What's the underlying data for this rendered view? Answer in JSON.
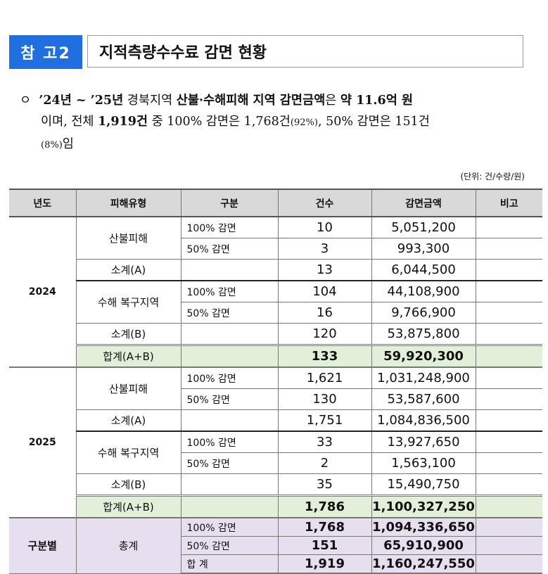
{
  "badge": "참 고2",
  "title": "지적측량수수료 감면 현황",
  "paragraph": {
    "bullet": "ㅇ",
    "line1_a": "’24년 ~ ’25년",
    "line1_b": " 경북지역 ",
    "line1_c": "산불·수해피해 지역 감면금액",
    "line1_d": "은 ",
    "line1_e": "약 11.6억 원",
    "line2_a": "이며, 전체 ",
    "line2_b": "1,919건",
    "line2_c": " 중 100% 감면은 1,768건",
    "line2_d": "(92%)",
    "line2_e": ", 50% 감면은 151건",
    "line3_a": "(8%)",
    "line3_b": "임"
  },
  "unit": "(단위: 건/수량/원)",
  "table": {
    "headers": [
      "년도",
      "피해유형",
      "구분",
      "건수",
      "감면금액",
      "비고"
    ],
    "years": [
      {
        "year": "2024",
        "fire": {
          "label": "산불피해",
          "r100": {
            "label": "100% 감면",
            "count": "10",
            "amount": "5,051,200"
          },
          "r50": {
            "label": "50% 감면",
            "count": "3",
            "amount": "993,300"
          },
          "sub": {
            "label": "소계(A)",
            "count": "13",
            "amount": "6,044,500"
          }
        },
        "flood": {
          "label": "수해 복구지역",
          "r100": {
            "label": "100% 감면",
            "count": "104",
            "amount": "44,108,900"
          },
          "r50": {
            "label": "50% 감면",
            "count": "16",
            "amount": "9,766,900"
          },
          "sub": {
            "label": "소계(B)",
            "count": "120",
            "amount": "53,875,800"
          }
        },
        "total": {
          "label": "합계(A+B)",
          "count": "133",
          "amount": "59,920,300"
        }
      },
      {
        "year": "2025",
        "fire": {
          "label": "산불피해",
          "r100": {
            "label": "100% 감면",
            "count": "1,621",
            "amount": "1,031,248,900"
          },
          "r50": {
            "label": "50% 감면",
            "count": "130",
            "amount": "53,587,600"
          },
          "sub": {
            "label": "소계(A)",
            "count": "1,751",
            "amount": "1,084,836,500"
          }
        },
        "flood": {
          "label": "수해 복구지역",
          "r100": {
            "label": "100% 감면",
            "count": "33",
            "amount": "13,927,650"
          },
          "r50": {
            "label": "50% 감면",
            "count": "2",
            "amount": "1,563,100"
          },
          "sub": {
            "label": "소계(B)",
            "count": "35",
            "amount": "15,490,750"
          }
        },
        "total": {
          "label": "합계(A+B)",
          "count": "1,786",
          "amount": "1,100,327,250"
        }
      }
    ],
    "summary": {
      "label": "구분별",
      "type": "총계",
      "rows": [
        {
          "label": "100% 감면",
          "count": "1,768",
          "amount": "1,094,336,650"
        },
        {
          "label": "50% 감면",
          "count": "151",
          "amount": "65,910,900"
        },
        {
          "label": "합 계",
          "count": "1,919",
          "amount": "1,160,247,550"
        }
      ]
    }
  },
  "colors": {
    "badge": "#1f6fe0",
    "header": "#d9d9d9",
    "subtotal_green": "#e2efd9",
    "summary_purple": "#e7dff0"
  }
}
